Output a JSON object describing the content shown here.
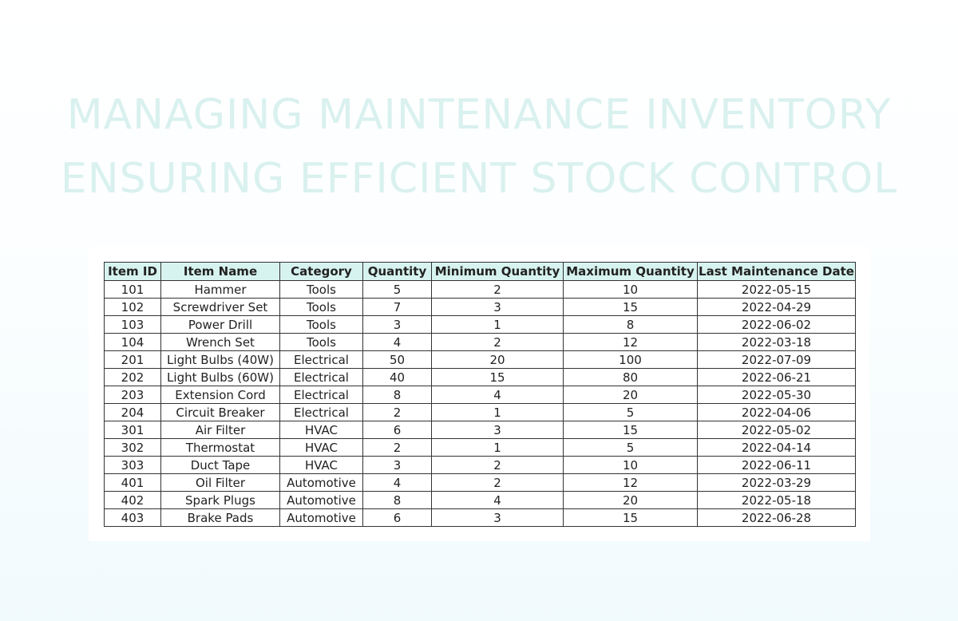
{
  "title": {
    "line1": "MANAGING MAINTENANCE INVENTORY",
    "line2": "ENSURING EFFICIENT STOCK CONTROL"
  },
  "table": {
    "headers": [
      "Item ID",
      "Item Name",
      "Category",
      "Quantity",
      "Minimum Quantity",
      "Maximum Quantity",
      "Last Maintenance Date"
    ],
    "rows": [
      [
        "101",
        "Hammer",
        "Tools",
        "5",
        "2",
        "10",
        "2022-05-15"
      ],
      [
        "102",
        "Screwdriver Set",
        "Tools",
        "7",
        "3",
        "15",
        "2022-04-29"
      ],
      [
        "103",
        "Power Drill",
        "Tools",
        "3",
        "1",
        "8",
        "2022-06-02"
      ],
      [
        "104",
        "Wrench Set",
        "Tools",
        "4",
        "2",
        "12",
        "2022-03-18"
      ],
      [
        "201",
        "Light Bulbs (40W)",
        "Electrical",
        "50",
        "20",
        "100",
        "2022-07-09"
      ],
      [
        "202",
        "Light Bulbs (60W)",
        "Electrical",
        "40",
        "15",
        "80",
        "2022-06-21"
      ],
      [
        "203",
        "Extension Cord",
        "Electrical",
        "8",
        "4",
        "20",
        "2022-05-30"
      ],
      [
        "204",
        "Circuit Breaker",
        "Electrical",
        "2",
        "1",
        "5",
        "2022-04-06"
      ],
      [
        "301",
        "Air Filter",
        "HVAC",
        "6",
        "3",
        "15",
        "2022-05-02"
      ],
      [
        "302",
        "Thermostat",
        "HVAC",
        "2",
        "1",
        "5",
        "2022-04-14"
      ],
      [
        "303",
        "Duct Tape",
        "HVAC",
        "3",
        "2",
        "10",
        "2022-06-11"
      ],
      [
        "401",
        "Oil Filter",
        "Automotive",
        "4",
        "2",
        "12",
        "2022-03-29"
      ],
      [
        "402",
        "Spark Plugs",
        "Automotive",
        "8",
        "4",
        "20",
        "2022-05-18"
      ],
      [
        "403",
        "Brake Pads",
        "Automotive",
        "6",
        "3",
        "15",
        "2022-06-28"
      ]
    ]
  },
  "colors": {
    "title": "#d9f1ef",
    "header_bg": "#d7f3ef",
    "border": "#333333"
  }
}
